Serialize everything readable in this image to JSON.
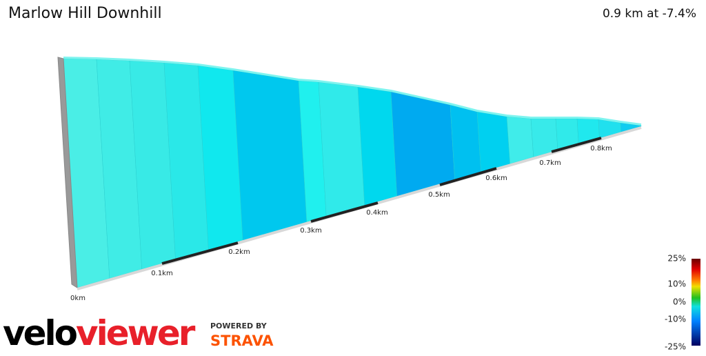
{
  "header": {
    "title": "Marlow Hill Downhill",
    "summary": "0.9 km at -7.4%"
  },
  "distance_labels": [
    "0km",
    "0.1km",
    "0.2km",
    "0.3km",
    "0.4km",
    "0.5km",
    "0.6km",
    "0.7km",
    "0.8km"
  ],
  "gradient_legend": [
    "25%",
    "10%",
    "0%",
    "-10%",
    "-25%"
  ],
  "branding": {
    "logo_left": "velo",
    "logo_right": "viewer",
    "powered_by": "POWERED BY",
    "partner": "STRAVA"
  }
}
